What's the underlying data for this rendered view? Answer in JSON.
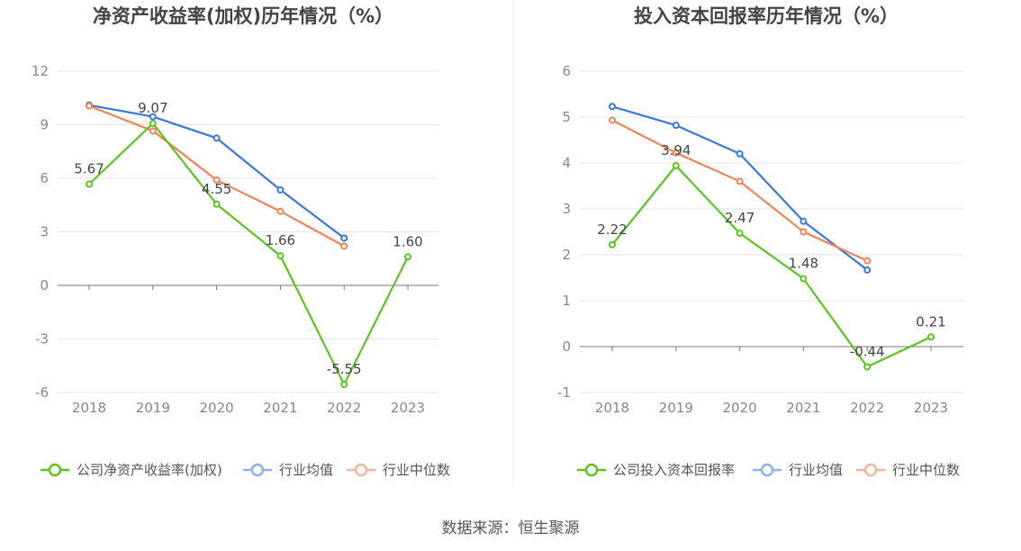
{
  "colors": {
    "company": "#5cc41f",
    "avg": "#3b78dc",
    "median": "#f08358",
    "avg_legend": "#8eb1ee",
    "median_legend": "#f6b49a",
    "grid": "#e6e6e6",
    "axis": "#777777"
  },
  "source": "数据来源：恒生聚源",
  "chart_data": [
    {
      "type": "line",
      "title": "净资产收益率(加权)历年情况（%）",
      "categories": [
        "2018",
        "2019",
        "2020",
        "2021",
        "2022",
        "2023"
      ],
      "yticks": [
        12,
        9,
        6,
        3,
        0,
        -3,
        -6
      ],
      "ylim": [
        -6,
        12
      ],
      "series": [
        {
          "name": "公司净资产收益率(加权)",
          "key": "company",
          "values": [
            5.67,
            9.07,
            4.55,
            1.66,
            -5.55,
            1.6
          ],
          "labels": [
            "5.67",
            "9.07",
            "4.55",
            "1.66",
            "-5.55",
            "1.60"
          ]
        },
        {
          "name": "行业均值",
          "key": "avg",
          "values": [
            10.1,
            9.45,
            8.25,
            5.35,
            2.65,
            null
          ]
        },
        {
          "name": "行业中位数",
          "key": "median",
          "values": [
            10.05,
            8.65,
            5.9,
            4.15,
            2.2,
            null
          ]
        }
      ]
    },
    {
      "type": "line",
      "title": "投入资本回报率历年情况（%）",
      "categories": [
        "2018",
        "2019",
        "2020",
        "2021",
        "2022",
        "2023"
      ],
      "yticks": [
        6,
        5,
        4,
        3,
        2,
        1,
        0,
        -1
      ],
      "ylim": [
        -1,
        6
      ],
      "series": [
        {
          "name": "公司投入资本回报率",
          "key": "company",
          "values": [
            2.22,
            3.94,
            2.47,
            1.48,
            -0.44,
            0.21
          ],
          "labels": [
            "2.22",
            "3.94",
            "2.47",
            "1.48",
            "-0.44",
            "0.21"
          ]
        },
        {
          "name": "行业均值",
          "key": "avg",
          "values": [
            5.23,
            4.82,
            4.2,
            2.73,
            1.67,
            null
          ]
        },
        {
          "name": "行业中位数",
          "key": "median",
          "values": [
            4.93,
            4.22,
            3.6,
            2.5,
            1.87,
            null
          ]
        }
      ]
    }
  ]
}
